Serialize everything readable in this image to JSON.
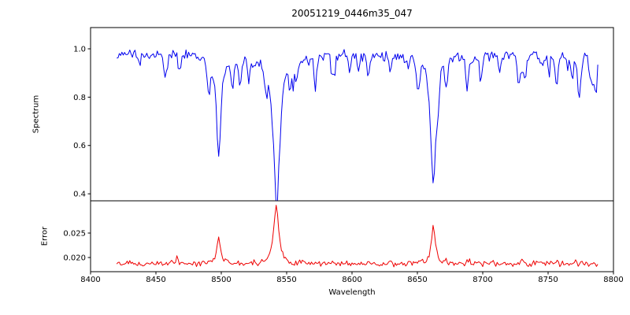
{
  "chart_data": {
    "type": "line",
    "title": "20051219_0446m35_047",
    "xlabel": "Wavelength",
    "xlim": [
      8400,
      8800
    ],
    "x_ticks": [
      8400,
      8450,
      8500,
      8550,
      8600,
      8650,
      8700,
      8750,
      8800
    ],
    "x_data_range": [
      8420,
      8788
    ],
    "x_step": 1,
    "seed": 20051219,
    "legend": "none",
    "grid": false,
    "panels": [
      {
        "name": "spectrum",
        "ylabel": "Spectrum",
        "color": "#0000ee",
        "ylim": [
          0.371,
          1.088
        ],
        "y_ticks": [
          0.4,
          0.6,
          0.8,
          1.0
        ],
        "y_tick_labels": [
          "0.4",
          "0.6",
          "0.8",
          "1.0"
        ],
        "continuum": 0.975,
        "noise_amplitude": 0.014,
        "random_dips": {
          "count": 46,
          "depth_min": 0.02,
          "depth_max": 0.13,
          "width_min": 0.5,
          "width_max": 1.4
        },
        "minor_lines": [
          {
            "center": 8468,
            "depth": 0.07,
            "width": 0.9
          },
          {
            "center": 8514,
            "depth": 0.11,
            "width": 1.0
          },
          {
            "center": 8521,
            "depth": 0.08,
            "width": 0.9
          },
          {
            "center": 8598,
            "depth": 0.07,
            "width": 0.9
          },
          {
            "center": 8688,
            "depth": 0.16,
            "width": 1.1
          },
          {
            "center": 8713,
            "depth": 0.08,
            "width": 0.9
          },
          {
            "center": 8757,
            "depth": 0.09,
            "width": 1.0
          }
        ],
        "absorption_lines": [
          {
            "center": 8498.0,
            "depth": 0.42,
            "width": 2.0
          },
          {
            "center": 8542.1,
            "depth": 0.578,
            "width": 3.0
          },
          {
            "center": 8662.1,
            "depth": 0.545,
            "width": 2.4
          }
        ]
      },
      {
        "name": "error",
        "ylabel": "Error",
        "color": "#ee0000",
        "ylim": [
          0.0171,
          0.0316
        ],
        "y_ticks": [
          0.02,
          0.025
        ],
        "y_tick_labels": [
          "0.020",
          "0.025"
        ],
        "baseline": 0.0187,
        "noise_amplitude": 0.00035,
        "random_bumps": {
          "count": 14,
          "height_min": 0.0002,
          "height_max": 0.0011,
          "width_min": 0.5,
          "width_max": 1.2
        },
        "peaks": [
          {
            "center": 8428.0,
            "height": 0.0009,
            "width": 0.7
          },
          {
            "center": 8466.0,
            "height": 0.0013,
            "width": 0.7
          },
          {
            "center": 8498.0,
            "height": 0.0055,
            "width": 1.6
          },
          {
            "center": 8542.1,
            "height": 0.0118,
            "width": 2.2
          },
          {
            "center": 8662.1,
            "height": 0.0078,
            "width": 1.8
          },
          {
            "center": 8690.0,
            "height": 0.0008,
            "width": 0.8
          },
          {
            "center": 8757.0,
            "height": 0.0007,
            "width": 0.8
          }
        ]
      }
    ]
  }
}
